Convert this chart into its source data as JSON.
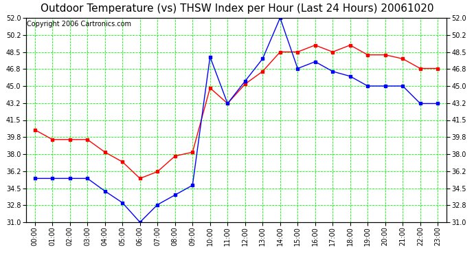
{
  "title": "Outdoor Temperature (vs) THSW Index per Hour (Last 24 Hours) 20061020",
  "copyright": "Copyright 2006 Cartronics.com",
  "hours": [
    "00:00",
    "01:00",
    "02:00",
    "03:00",
    "04:00",
    "05:00",
    "06:00",
    "07:00",
    "08:00",
    "09:00",
    "10:00",
    "11:00",
    "12:00",
    "13:00",
    "14:00",
    "15:00",
    "16:00",
    "17:00",
    "18:00",
    "19:00",
    "20:00",
    "21:00",
    "22:00",
    "23:00"
  ],
  "temp_red": [
    40.5,
    39.5,
    39.5,
    39.5,
    38.2,
    37.2,
    35.5,
    36.2,
    37.8,
    38.2,
    44.8,
    43.2,
    45.2,
    46.5,
    48.5,
    48.5,
    49.2,
    48.5,
    49.2,
    48.2,
    48.2,
    47.8,
    46.8,
    46.8
  ],
  "temp_blue": [
    35.5,
    35.5,
    35.5,
    35.5,
    34.2,
    33.0,
    31.0,
    32.8,
    33.8,
    34.8,
    48.0,
    43.2,
    45.5,
    47.8,
    52.0,
    46.8,
    47.5,
    46.5,
    46.0,
    45.0,
    45.0,
    45.0,
    43.2,
    43.2
  ],
  "ylim_min": 31.0,
  "ylim_max": 52.0,
  "yticks": [
    31.0,
    32.8,
    34.5,
    36.2,
    38.0,
    39.8,
    41.5,
    43.2,
    45.0,
    46.8,
    48.5,
    50.2,
    52.0
  ],
  "bg_color": "#ffffff",
  "grid_color": "#00ff00",
  "red_color": "#ff0000",
  "blue_color": "#0000ff",
  "title_fontsize": 11,
  "copyright_fontsize": 7
}
